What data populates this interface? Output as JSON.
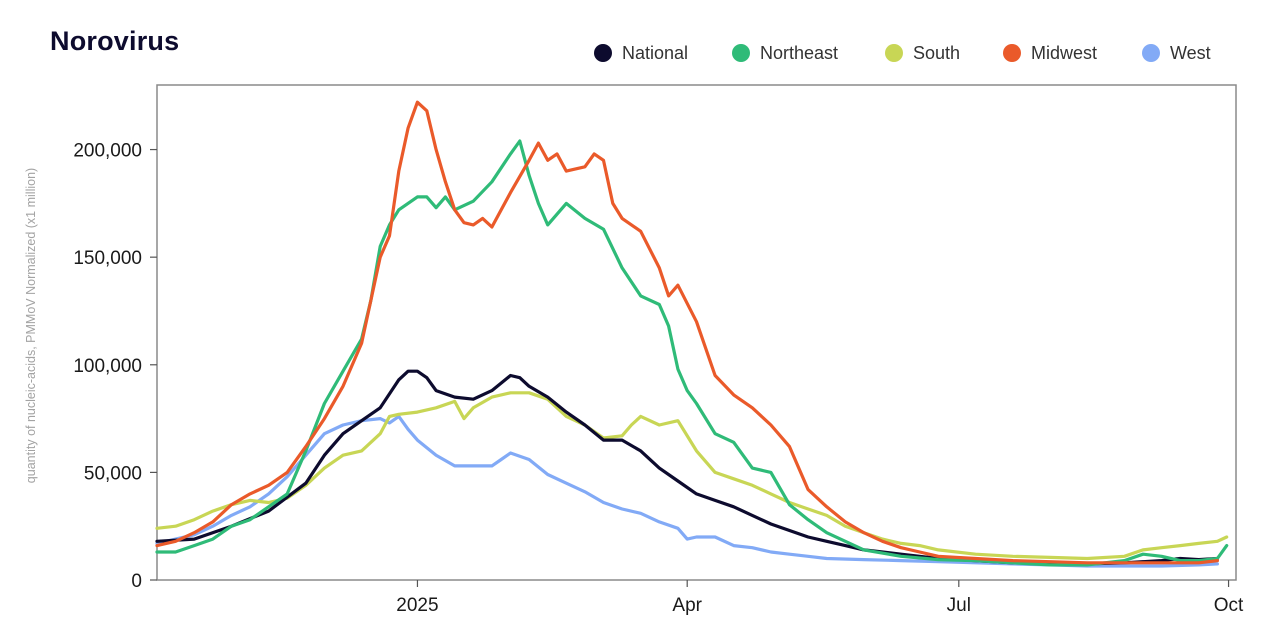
{
  "chart_data": {
    "type": "line",
    "title": "Norovirus",
    "ylabel": "quantity of nucleic-acids, PMMoV Normalized (x1 million)",
    "xlabel": "",
    "ylim": [
      0,
      230000
    ],
    "xlim": [
      0,
      58
    ],
    "x_unit": "weeks since start of series (late Sep 2024)",
    "yticks": [
      0,
      50000,
      100000,
      150000,
      200000
    ],
    "ytick_labels": [
      "0",
      "50,000",
      "100,000",
      "150,000",
      "200,000"
    ],
    "xticks": [
      {
        "x": 14,
        "label": "2025"
      },
      {
        "x": 28.5,
        "label": "Apr"
      },
      {
        "x": 43.1,
        "label": "Jul"
      },
      {
        "x": 57.6,
        "label": "Oct"
      }
    ],
    "grid": false,
    "legend_position": "top-right",
    "series": [
      {
        "name": "National",
        "color": "#0d0b2e",
        "points": [
          [
            0,
            18000
          ],
          [
            2,
            19000
          ],
          [
            4,
            25000
          ],
          [
            6,
            32000
          ],
          [
            8,
            45000
          ],
          [
            9,
            58000
          ],
          [
            10,
            68000
          ],
          [
            11,
            74000
          ],
          [
            12,
            80000
          ],
          [
            13,
            93000
          ],
          [
            13.5,
            97000
          ],
          [
            14,
            97000
          ],
          [
            14.5,
            94000
          ],
          [
            15,
            88000
          ],
          [
            16,
            85000
          ],
          [
            17,
            84000
          ],
          [
            18,
            88000
          ],
          [
            19,
            95000
          ],
          [
            19.5,
            94000
          ],
          [
            20,
            90000
          ],
          [
            21,
            85000
          ],
          [
            22,
            78000
          ],
          [
            23,
            72000
          ],
          [
            24,
            65000
          ],
          [
            25,
            65000
          ],
          [
            26,
            60000
          ],
          [
            27,
            52000
          ],
          [
            28,
            46000
          ],
          [
            29,
            40000
          ],
          [
            30,
            37000
          ],
          [
            31,
            34000
          ],
          [
            32,
            30000
          ],
          [
            33,
            26000
          ],
          [
            34,
            23000
          ],
          [
            35,
            20000
          ],
          [
            36,
            18000
          ],
          [
            37,
            16000
          ],
          [
            38,
            14000
          ],
          [
            39,
            13000
          ],
          [
            40,
            12000
          ],
          [
            42,
            10000
          ],
          [
            44,
            9000
          ],
          [
            46,
            8000
          ],
          [
            48,
            8000
          ],
          [
            50,
            7500
          ],
          [
            52,
            8000
          ],
          [
            54,
            9000
          ],
          [
            55,
            10000
          ],
          [
            56,
            9500
          ],
          [
            57,
            10000
          ]
        ]
      },
      {
        "name": "Northeast",
        "color": "#2fbb78",
        "points": [
          [
            0,
            13000
          ],
          [
            1,
            13000
          ],
          [
            2,
            16000
          ],
          [
            3,
            19000
          ],
          [
            4,
            25000
          ],
          [
            5,
            28000
          ],
          [
            6,
            34000
          ],
          [
            7,
            40000
          ],
          [
            8,
            60000
          ],
          [
            9,
            82000
          ],
          [
            10,
            97000
          ],
          [
            11,
            112000
          ],
          [
            11.5,
            130000
          ],
          [
            12,
            155000
          ],
          [
            12.5,
            165000
          ],
          [
            13,
            172000
          ],
          [
            14,
            178000
          ],
          [
            14.5,
            178000
          ],
          [
            15,
            173000
          ],
          [
            15.5,
            178000
          ],
          [
            16,
            172000
          ],
          [
            17,
            176000
          ],
          [
            18,
            185000
          ],
          [
            19,
            198000
          ],
          [
            19.5,
            204000
          ],
          [
            20,
            188000
          ],
          [
            20.5,
            175000
          ],
          [
            21,
            165000
          ],
          [
            22,
            175000
          ],
          [
            23,
            168000
          ],
          [
            24,
            163000
          ],
          [
            25,
            145000
          ],
          [
            26,
            132000
          ],
          [
            27,
            128000
          ],
          [
            27.5,
            118000
          ],
          [
            28,
            98000
          ],
          [
            28.5,
            88000
          ],
          [
            29,
            82000
          ],
          [
            30,
            68000
          ],
          [
            31,
            64000
          ],
          [
            31.5,
            58000
          ],
          [
            32,
            52000
          ],
          [
            33,
            50000
          ],
          [
            34,
            35000
          ],
          [
            35,
            28000
          ],
          [
            36,
            22000
          ],
          [
            37,
            18000
          ],
          [
            38,
            14000
          ],
          [
            40,
            11000
          ],
          [
            42,
            9500
          ],
          [
            44,
            9000
          ],
          [
            46,
            8000
          ],
          [
            48,
            7000
          ],
          [
            50,
            7000
          ],
          [
            52,
            9000
          ],
          [
            53,
            12000
          ],
          [
            54,
            11000
          ],
          [
            55,
            9000
          ],
          [
            56,
            9000
          ],
          [
            57,
            10000
          ],
          [
            57.5,
            16000
          ]
        ]
      },
      {
        "name": "South",
        "color": "#c8d655",
        "points": [
          [
            0,
            24000
          ],
          [
            1,
            25000
          ],
          [
            2,
            28000
          ],
          [
            3,
            32000
          ],
          [
            4,
            35000
          ],
          [
            5,
            37000
          ],
          [
            6,
            36000
          ],
          [
            7,
            38000
          ],
          [
            8,
            44000
          ],
          [
            9,
            52000
          ],
          [
            10,
            58000
          ],
          [
            11,
            60000
          ],
          [
            12,
            68000
          ],
          [
            12.5,
            76000
          ],
          [
            13,
            77000
          ],
          [
            14,
            78000
          ],
          [
            15,
            80000
          ],
          [
            16,
            83000
          ],
          [
            16.5,
            75000
          ],
          [
            17,
            80000
          ],
          [
            18,
            85000
          ],
          [
            19,
            87000
          ],
          [
            20,
            87000
          ],
          [
            21,
            84000
          ],
          [
            22,
            76000
          ],
          [
            23,
            72000
          ],
          [
            24,
            66000
          ],
          [
            25,
            67000
          ],
          [
            25.5,
            72000
          ],
          [
            26,
            76000
          ],
          [
            27,
            72000
          ],
          [
            28,
            74000
          ],
          [
            29,
            60000
          ],
          [
            30,
            50000
          ],
          [
            31,
            47000
          ],
          [
            32,
            44000
          ],
          [
            33,
            40000
          ],
          [
            34,
            36000
          ],
          [
            35,
            33000
          ],
          [
            36,
            30000
          ],
          [
            37,
            25000
          ],
          [
            38,
            22000
          ],
          [
            39,
            19000
          ],
          [
            40,
            17000
          ],
          [
            41,
            16000
          ],
          [
            42,
            14000
          ],
          [
            44,
            12000
          ],
          [
            46,
            11000
          ],
          [
            48,
            10500
          ],
          [
            50,
            10000
          ],
          [
            52,
            11000
          ],
          [
            53,
            14000
          ],
          [
            54,
            15000
          ],
          [
            55,
            16000
          ],
          [
            56,
            17000
          ],
          [
            57,
            18000
          ],
          [
            57.5,
            20000
          ]
        ]
      },
      {
        "name": "Midwest",
        "color": "#ea5a2a",
        "points": [
          [
            0,
            16000
          ],
          [
            1,
            18000
          ],
          [
            2,
            22000
          ],
          [
            3,
            27000
          ],
          [
            4,
            35000
          ],
          [
            5,
            40000
          ],
          [
            6,
            44000
          ],
          [
            7,
            50000
          ],
          [
            8,
            62000
          ],
          [
            9,
            75000
          ],
          [
            10,
            90000
          ],
          [
            11,
            110000
          ],
          [
            11.5,
            130000
          ],
          [
            12,
            150000
          ],
          [
            12.5,
            160000
          ],
          [
            13,
            190000
          ],
          [
            13.5,
            210000
          ],
          [
            14,
            222000
          ],
          [
            14.5,
            218000
          ],
          [
            15,
            200000
          ],
          [
            15.5,
            185000
          ],
          [
            16,
            172000
          ],
          [
            16.5,
            166000
          ],
          [
            17,
            165000
          ],
          [
            17.5,
            168000
          ],
          [
            18,
            164000
          ],
          [
            19,
            180000
          ],
          [
            20,
            195000
          ],
          [
            20.5,
            203000
          ],
          [
            21,
            195000
          ],
          [
            21.5,
            198000
          ],
          [
            22,
            190000
          ],
          [
            23,
            192000
          ],
          [
            23.5,
            198000
          ],
          [
            24,
            195000
          ],
          [
            24.5,
            175000
          ],
          [
            25,
            168000
          ],
          [
            26,
            162000
          ],
          [
            27,
            145000
          ],
          [
            27.5,
            132000
          ],
          [
            28,
            137000
          ],
          [
            29,
            120000
          ],
          [
            30,
            95000
          ],
          [
            31,
            86000
          ],
          [
            32,
            80000
          ],
          [
            33,
            72000
          ],
          [
            34,
            62000
          ],
          [
            35,
            42000
          ],
          [
            36,
            34000
          ],
          [
            37,
            27000
          ],
          [
            38,
            22000
          ],
          [
            39,
            18000
          ],
          [
            40,
            15000
          ],
          [
            41,
            13000
          ],
          [
            42,
            11000
          ],
          [
            44,
            10000
          ],
          [
            46,
            9000
          ],
          [
            48,
            8500
          ],
          [
            50,
            8000
          ],
          [
            52,
            8000
          ],
          [
            54,
            8000
          ],
          [
            56,
            8000
          ],
          [
            57,
            9000
          ]
        ]
      },
      {
        "name": "West",
        "color": "#82aaf6",
        "points": [
          [
            0,
            17000
          ],
          [
            1,
            19000
          ],
          [
            2,
            21000
          ],
          [
            3,
            25000
          ],
          [
            4,
            30000
          ],
          [
            5,
            34000
          ],
          [
            6,
            40000
          ],
          [
            7,
            48000
          ],
          [
            8,
            58000
          ],
          [
            9,
            68000
          ],
          [
            10,
            72000
          ],
          [
            11,
            74000
          ],
          [
            12,
            75000
          ],
          [
            12.5,
            73000
          ],
          [
            13,
            76000
          ],
          [
            13.5,
            70000
          ],
          [
            14,
            65000
          ],
          [
            15,
            58000
          ],
          [
            16,
            53000
          ],
          [
            17,
            53000
          ],
          [
            18,
            53000
          ],
          [
            18.5,
            56000
          ],
          [
            19,
            59000
          ],
          [
            20,
            56000
          ],
          [
            21,
            49000
          ],
          [
            22,
            45000
          ],
          [
            23,
            41000
          ],
          [
            24,
            36000
          ],
          [
            25,
            33000
          ],
          [
            26,
            31000
          ],
          [
            27,
            27000
          ],
          [
            28,
            24000
          ],
          [
            28.5,
            19000
          ],
          [
            29,
            20000
          ],
          [
            30,
            20000
          ],
          [
            31,
            16000
          ],
          [
            32,
            15000
          ],
          [
            33,
            13000
          ],
          [
            34,
            12000
          ],
          [
            35,
            11000
          ],
          [
            36,
            10000
          ],
          [
            38,
            9500
          ],
          [
            40,
            9000
          ],
          [
            42,
            8500
          ],
          [
            44,
            8000
          ],
          [
            46,
            7500
          ],
          [
            48,
            7000
          ],
          [
            50,
            6500
          ],
          [
            52,
            6500
          ],
          [
            54,
            6500
          ],
          [
            56,
            7000
          ],
          [
            57,
            7500
          ]
        ]
      }
    ]
  }
}
